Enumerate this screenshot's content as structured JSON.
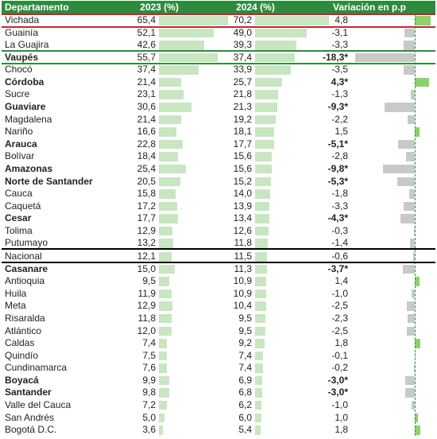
{
  "headers": {
    "departamento": "Departamento",
    "y2023": "2023 (%)",
    "y2024": "2024 (%)",
    "variacion": "Variación en p.p"
  },
  "chart_data": {
    "type": "table",
    "columns": [
      "Departamento",
      "2023 (%)",
      "2024 (%)",
      "Variación en p.p"
    ],
    "rows": [
      {
        "dep": "Vichada",
        "v2023": "65,4",
        "v2024": "70,2",
        "var": "4,8",
        "bold": false,
        "n23": 65.4,
        "n24": 70.2,
        "nvar": 4.8
      },
      {
        "dep": "Guainía",
        "v2023": "52,1",
        "v2024": "49,0",
        "var": "-3,1",
        "bold": false,
        "n23": 52.1,
        "n24": 49.0,
        "nvar": -3.1
      },
      {
        "dep": "La Guajira",
        "v2023": "42,6",
        "v2024": "39,3",
        "var": "-3,3",
        "bold": false,
        "n23": 42.6,
        "n24": 39.3,
        "nvar": -3.3
      },
      {
        "dep": "Vaupés",
        "v2023": "55,7",
        "v2024": "37,4",
        "var": "-18,3*",
        "bold": true,
        "n23": 55.7,
        "n24": 37.4,
        "nvar": -18.3
      },
      {
        "dep": "Chocó",
        "v2023": "37,4",
        "v2024": "33,9",
        "var": "-3,5",
        "bold": false,
        "n23": 37.4,
        "n24": 33.9,
        "nvar": -3.5
      },
      {
        "dep": "Córdoba",
        "v2023": "21,4",
        "v2024": "25,7",
        "var": "4,3*",
        "bold": true,
        "n23": 21.4,
        "n24": 25.7,
        "nvar": 4.3
      },
      {
        "dep": "Sucre",
        "v2023": "23,1",
        "v2024": "21,8",
        "var": "-1,3",
        "bold": false,
        "n23": 23.1,
        "n24": 21.8,
        "nvar": -1.3
      },
      {
        "dep": "Guaviare",
        "v2023": "30,6",
        "v2024": "21,3",
        "var": "-9,3*",
        "bold": true,
        "n23": 30.6,
        "n24": 21.3,
        "nvar": -9.3
      },
      {
        "dep": "Magdalena",
        "v2023": "21,4",
        "v2024": "19,2",
        "var": "-2,2",
        "bold": false,
        "n23": 21.4,
        "n24": 19.2,
        "nvar": -2.2
      },
      {
        "dep": "Nariño",
        "v2023": "16,6",
        "v2024": "18,1",
        "var": "1,5",
        "bold": false,
        "n23": 16.6,
        "n24": 18.1,
        "nvar": 1.5
      },
      {
        "dep": "Arauca",
        "v2023": "22,8",
        "v2024": "17,7",
        "var": "-5,1*",
        "bold": true,
        "n23": 22.8,
        "n24": 17.7,
        "nvar": -5.1
      },
      {
        "dep": "Bolívar",
        "v2023": "18,4",
        "v2024": "15,6",
        "var": "-2,8",
        "bold": false,
        "n23": 18.4,
        "n24": 15.6,
        "nvar": -2.8
      },
      {
        "dep": "Amazonas",
        "v2023": "25,4",
        "v2024": "15,6",
        "var": "-9,8*",
        "bold": true,
        "n23": 25.4,
        "n24": 15.6,
        "nvar": -9.8
      },
      {
        "dep": "Norte de Santander",
        "v2023": "20,5",
        "v2024": "15,2",
        "var": "-5,3*",
        "bold": true,
        "n23": 20.5,
        "n24": 15.2,
        "nvar": -5.3
      },
      {
        "dep": "Cauca",
        "v2023": "15,8",
        "v2024": "14,0",
        "var": "-1,8",
        "bold": false,
        "n23": 15.8,
        "n24": 14.0,
        "nvar": -1.8
      },
      {
        "dep": "Caquetá",
        "v2023": "17,2",
        "v2024": "13,9",
        "var": "-3,3",
        "bold": false,
        "n23": 17.2,
        "n24": 13.9,
        "nvar": -3.3
      },
      {
        "dep": "Cesar",
        "v2023": "17,7",
        "v2024": "13,4",
        "var": "-4,3*",
        "bold": true,
        "n23": 17.7,
        "n24": 13.4,
        "nvar": -4.3
      },
      {
        "dep": "Tolima",
        "v2023": "12,9",
        "v2024": "12,6",
        "var": "-0,3",
        "bold": false,
        "n23": 12.9,
        "n24": 12.6,
        "nvar": -0.3
      },
      {
        "dep": "Putumayo",
        "v2023": "13,2",
        "v2024": "11,8",
        "var": "-1,4",
        "bold": false,
        "n23": 13.2,
        "n24": 11.8,
        "nvar": -1.4
      },
      {
        "dep": "Nacional",
        "v2023": "12,1",
        "v2024": "11,5",
        "var": "-0,6",
        "bold": false,
        "n23": 12.1,
        "n24": 11.5,
        "nvar": -0.6
      },
      {
        "dep": "Casanare",
        "v2023": "15,0",
        "v2024": "11,3",
        "var": "-3,7*",
        "bold": true,
        "n23": 15.0,
        "n24": 11.3,
        "nvar": -3.7
      },
      {
        "dep": "Antioquia",
        "v2023": "9,5",
        "v2024": "10,9",
        "var": "1,4",
        "bold": false,
        "n23": 9.5,
        "n24": 10.9,
        "nvar": 1.4
      },
      {
        "dep": "Huila",
        "v2023": "11,9",
        "v2024": "10,9",
        "var": "-1,0",
        "bold": false,
        "n23": 11.9,
        "n24": 10.9,
        "nvar": -1.0
      },
      {
        "dep": "Meta",
        "v2023": "12,9",
        "v2024": "10,4",
        "var": "-2,5",
        "bold": false,
        "n23": 12.9,
        "n24": 10.4,
        "nvar": -2.5
      },
      {
        "dep": "Risaralda",
        "v2023": "11,8",
        "v2024": "9,5",
        "var": "-2,3",
        "bold": false,
        "n23": 11.8,
        "n24": 9.5,
        "nvar": -2.3
      },
      {
        "dep": "Atlántico",
        "v2023": "12,0",
        "v2024": "9,5",
        "var": "-2,5",
        "bold": false,
        "n23": 12.0,
        "n24": 9.5,
        "nvar": -2.5
      },
      {
        "dep": "Caldas",
        "v2023": "7,4",
        "v2024": "9,2",
        "var": "1,8",
        "bold": false,
        "n23": 7.4,
        "n24": 9.2,
        "nvar": 1.8
      },
      {
        "dep": "Quindío",
        "v2023": "7,5",
        "v2024": "7,4",
        "var": "-0,1",
        "bold": false,
        "n23": 7.5,
        "n24": 7.4,
        "nvar": -0.1
      },
      {
        "dep": "Cundinamarca",
        "v2023": "7,6",
        "v2024": "7,4",
        "var": "-0,2",
        "bold": false,
        "n23": 7.6,
        "n24": 7.4,
        "nvar": -0.2
      },
      {
        "dep": "Boyacá",
        "v2023": "9,9",
        "v2024": "6,9",
        "var": "-3,0*",
        "bold": true,
        "n23": 9.9,
        "n24": 6.9,
        "nvar": -3.0
      },
      {
        "dep": "Santander",
        "v2023": "9,8",
        "v2024": "6,8",
        "var": "-3,0*",
        "bold": true,
        "n23": 9.8,
        "n24": 6.8,
        "nvar": -3.0
      },
      {
        "dep": "Valle del Cauca",
        "v2023": "7,2",
        "v2024": "6,2",
        "var": "-1,0",
        "bold": false,
        "n23": 7.2,
        "n24": 6.2,
        "nvar": -1.0
      },
      {
        "dep": "San Andrés",
        "v2023": "5,0",
        "v2024": "6,0",
        "var": "1,0",
        "bold": false,
        "n23": 5.0,
        "n24": 6.0,
        "nvar": 1.0
      },
      {
        "dep": "Bogotá D.C.",
        "v2023": "3,6",
        "v2024": "5,4",
        "var": "1,8",
        "bold": false,
        "n23": 3.6,
        "n24": 5.4,
        "nvar": 1.8
      }
    ]
  },
  "colors": {
    "header_bg": "#2e8b3e",
    "bar_value": "#c7e6c1",
    "bar_negative": "#c9c9c9",
    "bar_positive": "#8dd16a",
    "highlight_red": "#c0282d",
    "highlight_green": "#2e8b3e"
  }
}
